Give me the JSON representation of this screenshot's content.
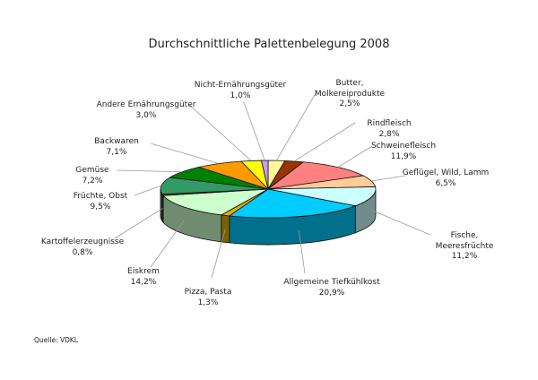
{
  "chart_data": {
    "type": "pie",
    "style": "3d",
    "title": "Durchschnittliche Palettenbelegung 2008",
    "source": "Quelle: VDKL",
    "slices": [
      {
        "name": "Butter,\nMolkereiprodukte",
        "value": 2.5,
        "label": "2,5%",
        "color": "#fff59a"
      },
      {
        "name": "Rindfleisch",
        "value": 2.8,
        "label": "2,8%",
        "color": "#993300"
      },
      {
        "name": "Schweinefleisch",
        "value": 11.9,
        "label": "11,9%",
        "color": "#ff8080"
      },
      {
        "name": "Geflügel, Wild, Lamm",
        "value": 6.5,
        "label": "6,5%",
        "color": "#ffcc99"
      },
      {
        "name": "Fische, Meeresfrüchte",
        "value": 11.2,
        "label": "11,2%",
        "color": "#ccffff"
      },
      {
        "name": "Allgemeine Tiefkühlkost",
        "value": 20.9,
        "label": "20,9%",
        "color": "#00ccff"
      },
      {
        "name": "Pizza, Pasta",
        "value": 1.3,
        "label": "1,3%",
        "color": "#e0b000"
      },
      {
        "name": "Eiskrem",
        "value": 14.2,
        "label": "14,2%",
        "color": "#ccffcc"
      },
      {
        "name": "Kartoffelerzeugnisse",
        "value": 0.8,
        "label": "0,8%",
        "color": "#804000"
      },
      {
        "name": "Früchte, Obst",
        "value": 9.5,
        "label": "9,5%",
        "color": "#339966"
      },
      {
        "name": "Gemüse",
        "value": 7.2,
        "label": "7,2%",
        "color": "#008000"
      },
      {
        "name": "Backwaren",
        "value": 7.1,
        "label": "7,1%",
        "color": "#ff9900"
      },
      {
        "name": "Andere Ernährungsgüter",
        "value": 3.0,
        "label": "3,0%",
        "color": "#ffff00"
      },
      {
        "name": "Nicht-Ernährungsgüter",
        "value": 1.0,
        "label": "1,0%",
        "color": "#cc99ff"
      }
    ]
  }
}
